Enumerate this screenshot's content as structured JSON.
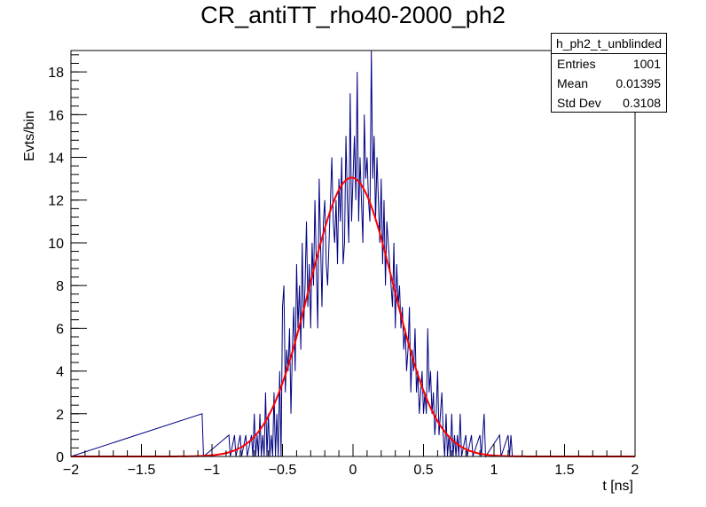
{
  "chart_data": {
    "type": "histogram",
    "title": "CR_antiTT_rho40-2000_ph2",
    "xlabel": "t [ns]",
    "ylabel": "Evts/bin",
    "xlim": [
      -2,
      2
    ],
    "ylim": [
      0,
      19
    ],
    "x_ticks": [
      -2,
      -1.5,
      -1,
      -0.5,
      0,
      0.5,
      1,
      1.5,
      2
    ],
    "x_tick_labels": [
      "−2",
      "−1.5",
      "−1",
      "−0.5",
      "0",
      "0.5",
      "1",
      "1.5",
      "2"
    ],
    "y_ticks": [
      0,
      2,
      4,
      6,
      8,
      10,
      12,
      14,
      16,
      18
    ],
    "y_tick_labels": [
      "0",
      "2",
      "4",
      "6",
      "8",
      "10",
      "12",
      "14",
      "16",
      "18"
    ],
    "bins": {
      "min": -2,
      "max": 2,
      "n": 400
    },
    "counts_nonzero": [
      [
        -1.07,
        2
      ],
      [
        -0.88,
        1
      ],
      [
        -0.84,
        1
      ],
      [
        -0.8,
        1
      ],
      [
        -0.76,
        1
      ],
      [
        -0.72,
        1
      ],
      [
        -0.7,
        2
      ],
      [
        -0.68,
        1
      ],
      [
        -0.66,
        2
      ],
      [
        -0.64,
        1
      ],
      [
        -0.62,
        3
      ],
      [
        -0.6,
        2
      ],
      [
        -0.58,
        1
      ],
      [
        -0.56,
        3
      ],
      [
        -0.54,
        2
      ],
      [
        -0.52,
        4
      ],
      [
        -0.5,
        7
      ],
      [
        -0.49,
        8
      ],
      [
        -0.48,
        3
      ],
      [
        -0.47,
        5
      ],
      [
        -0.46,
        4
      ],
      [
        -0.45,
        6
      ],
      [
        -0.44,
        2
      ],
      [
        -0.43,
        5
      ],
      [
        -0.42,
        7
      ],
      [
        -0.41,
        4
      ],
      [
        -0.4,
        9
      ],
      [
        -0.39,
        6
      ],
      [
        -0.38,
        8
      ],
      [
        -0.37,
        5
      ],
      [
        -0.36,
        10
      ],
      [
        -0.35,
        6
      ],
      [
        -0.34,
        8
      ],
      [
        -0.33,
        11
      ],
      [
        -0.32,
        7
      ],
      [
        -0.31,
        9
      ],
      [
        -0.3,
        6
      ],
      [
        -0.29,
        10
      ],
      [
        -0.28,
        8
      ],
      [
        -0.27,
        12
      ],
      [
        -0.26,
        9
      ],
      [
        -0.25,
        6
      ],
      [
        -0.24,
        13
      ],
      [
        -0.23,
        10
      ],
      [
        -0.22,
        7
      ],
      [
        -0.21,
        11
      ],
      [
        -0.2,
        12
      ],
      [
        -0.19,
        9
      ],
      [
        -0.18,
        8
      ],
      [
        -0.17,
        10
      ],
      [
        -0.16,
        12
      ],
      [
        -0.15,
        14
      ],
      [
        -0.14,
        11
      ],
      [
        -0.13,
        10
      ],
      [
        -0.12,
        12
      ],
      [
        -0.11,
        9
      ],
      [
        -0.1,
        13
      ],
      [
        -0.09,
        11
      ],
      [
        -0.08,
        14
      ],
      [
        -0.07,
        9
      ],
      [
        -0.06,
        10
      ],
      [
        -0.05,
        15
      ],
      [
        -0.04,
        12
      ],
      [
        -0.03,
        10
      ],
      [
        -0.02,
        17
      ],
      [
        -0.01,
        11
      ],
      [
        0.0,
        13
      ],
      [
        0.01,
        15
      ],
      [
        0.02,
        12
      ],
      [
        0.03,
        18
      ],
      [
        0.04,
        11
      ],
      [
        0.05,
        14
      ],
      [
        0.06,
        12
      ],
      [
        0.07,
        10
      ],
      [
        0.08,
        16
      ],
      [
        0.09,
        13
      ],
      [
        0.1,
        14
      ],
      [
        0.11,
        12
      ],
      [
        0.12,
        11
      ],
      [
        0.13,
        19
      ],
      [
        0.14,
        13
      ],
      [
        0.15,
        15
      ],
      [
        0.16,
        11
      ],
      [
        0.17,
        14
      ],
      [
        0.18,
        12
      ],
      [
        0.19,
        10
      ],
      [
        0.2,
        13
      ],
      [
        0.21,
        9
      ],
      [
        0.22,
        12
      ],
      [
        0.23,
        8
      ],
      [
        0.24,
        11
      ],
      [
        0.25,
        10
      ],
      [
        0.26,
        9
      ],
      [
        0.27,
        8
      ],
      [
        0.28,
        7
      ],
      [
        0.29,
        10
      ],
      [
        0.3,
        6
      ],
      [
        0.31,
        9
      ],
      [
        0.32,
        7
      ],
      [
        0.33,
        8
      ],
      [
        0.34,
        6
      ],
      [
        0.35,
        7
      ],
      [
        0.36,
        5
      ],
      [
        0.37,
        6
      ],
      [
        0.38,
        4
      ],
      [
        0.39,
        5
      ],
      [
        0.4,
        7
      ],
      [
        0.41,
        3
      ],
      [
        0.42,
        5
      ],
      [
        0.43,
        4
      ],
      [
        0.44,
        6
      ],
      [
        0.45,
        3
      ],
      [
        0.46,
        4
      ],
      [
        0.47,
        2
      ],
      [
        0.48,
        3
      ],
      [
        0.49,
        4
      ],
      [
        0.5,
        2
      ],
      [
        0.51,
        3
      ],
      [
        0.52,
        2
      ],
      [
        0.53,
        6
      ],
      [
        0.54,
        3
      ],
      [
        0.55,
        4
      ],
      [
        0.56,
        2
      ],
      [
        0.57,
        3
      ],
      [
        0.58,
        1
      ],
      [
        0.59,
        2
      ],
      [
        0.6,
        4
      ],
      [
        0.61,
        1
      ],
      [
        0.62,
        2
      ],
      [
        0.63,
        3
      ],
      [
        0.64,
        1
      ],
      [
        0.66,
        2
      ],
      [
        0.68,
        1
      ],
      [
        0.7,
        2
      ],
      [
        0.72,
        1
      ],
      [
        0.74,
        1
      ],
      [
        0.76,
        2
      ],
      [
        0.8,
        1
      ],
      [
        0.84,
        1
      ],
      [
        0.9,
        1
      ],
      [
        0.93,
        2
      ],
      [
        1.04,
        1
      ],
      [
        1.1,
        1
      ],
      [
        1.12,
        1
      ]
    ],
    "fit": {
      "type": "gaussian",
      "amplitude": 13.05,
      "mean": -0.01,
      "sigma": 0.3,
      "color": "#ff0000"
    },
    "histogram_color": "#000080",
    "stats_box": {
      "name": "h_ph2_t_unblinded",
      "entries_label": "Entries",
      "entries": "1001",
      "mean_label": "Mean",
      "mean": "0.01395",
      "stddev_label": "Std Dev",
      "stddev": "0.3108"
    }
  }
}
